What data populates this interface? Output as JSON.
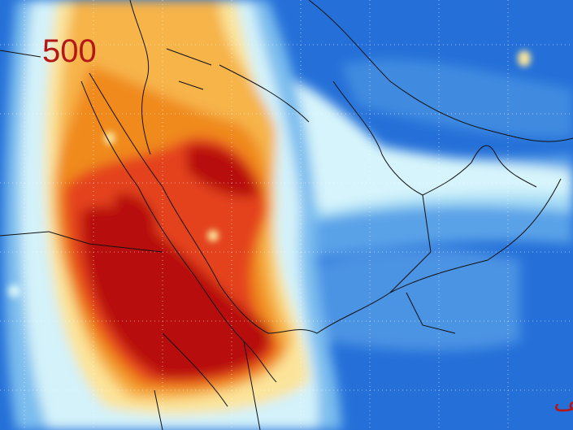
{
  "label": "500",
  "signature": "مهب الطيف"
}
